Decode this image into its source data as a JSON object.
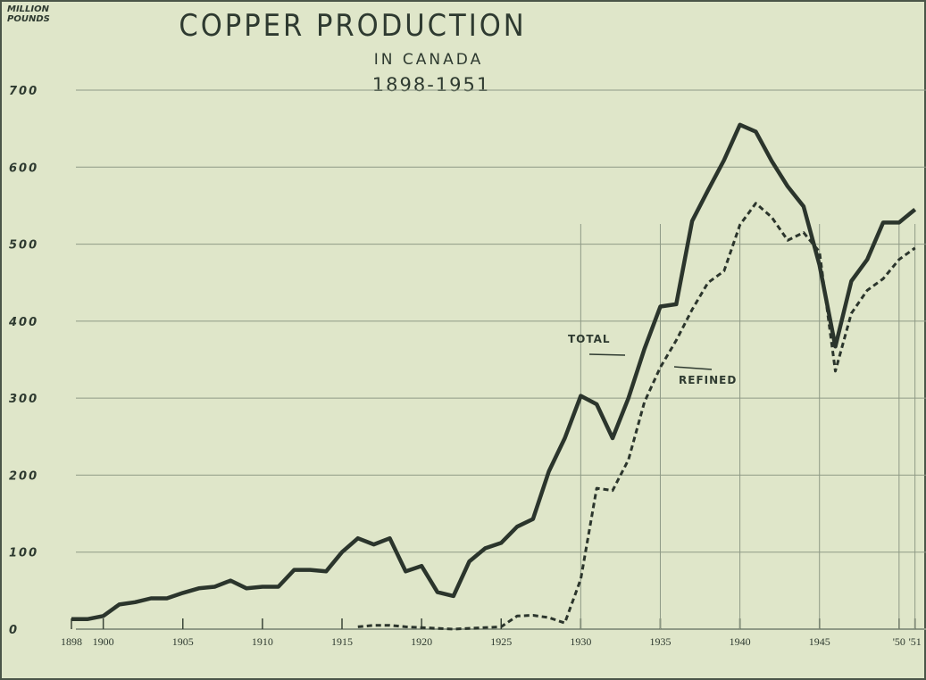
{
  "chart_data": {
    "type": "line",
    "title": "COPPER PRODUCTION",
    "subtitle": "IN CANADA",
    "period": "1898-1951",
    "y_label": "MILLION POUNDS",
    "x": [
      1898,
      1899,
      1900,
      1901,
      1902,
      1903,
      1904,
      1905,
      1906,
      1907,
      1908,
      1909,
      1910,
      1911,
      1912,
      1913,
      1914,
      1915,
      1916,
      1917,
      1918,
      1919,
      1920,
      1921,
      1922,
      1923,
      1924,
      1925,
      1926,
      1927,
      1928,
      1929,
      1930,
      1931,
      1932,
      1933,
      1934,
      1935,
      1936,
      1937,
      1938,
      1939,
      1940,
      1941,
      1942,
      1943,
      1944,
      1945,
      1946,
      1947,
      1948,
      1949,
      1950,
      1951
    ],
    "series": [
      {
        "name": "TOTAL",
        "color": "#2b352c",
        "dashed": false,
        "values": [
          13,
          13,
          17,
          32,
          35,
          40,
          40,
          47,
          53,
          55,
          63,
          53,
          55,
          55,
          77,
          77,
          75,
          100,
          118,
          110,
          118,
          75,
          82,
          48,
          43,
          88,
          105,
          112,
          133,
          143,
          205,
          248,
          303,
          292,
          248,
          300,
          364,
          419,
          422,
          530,
          570,
          609,
          655,
          646,
          608,
          575,
          549,
          473,
          367,
          452,
          480,
          528,
          528,
          545
        ]
      },
      {
        "name": "REFINED",
        "color": "#2b352c",
        "dashed": true,
        "values": [
          null,
          null,
          null,
          null,
          null,
          null,
          null,
          null,
          null,
          null,
          null,
          null,
          null,
          null,
          null,
          null,
          null,
          null,
          3,
          5,
          5,
          3,
          2,
          1,
          0,
          1,
          2,
          3,
          17,
          18,
          15,
          8,
          65,
          183,
          180,
          220,
          295,
          340,
          375,
          415,
          450,
          465,
          525,
          553,
          535,
          505,
          515,
          490,
          335,
          410,
          440,
          455,
          480,
          495
        ]
      }
    ],
    "xlim": [
      1898,
      1951.3
    ],
    "xticks": [
      1898,
      1900,
      1905,
      1910,
      1915,
      1920,
      1925,
      1930,
      1935,
      1940,
      1945,
      {
        "value": 1950,
        "label": "'50"
      },
      {
        "value": 1951,
        "label": "'51"
      }
    ],
    "ylim": [
      0,
      700
    ],
    "yticks": [
      0,
      100,
      200,
      300,
      400,
      500,
      600,
      700
    ],
    "grid": true
  }
}
